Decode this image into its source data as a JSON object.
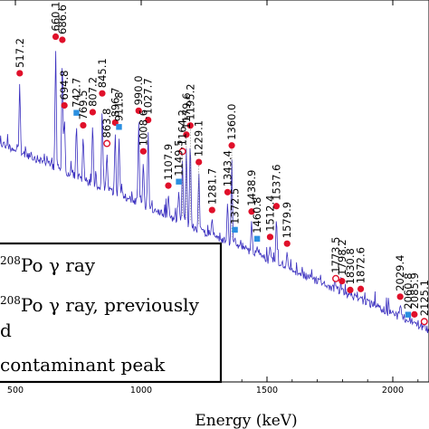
{
  "chart_data": {
    "type": "line",
    "title": "",
    "xlabel": "Energy (keV)",
    "ylabel": "",
    "xlim": [
      440,
      2150
    ],
    "x_ticks": [
      500,
      1000,
      1500,
      2000
    ],
    "x_tick_labels": [
      "500",
      "1000",
      "1500",
      "2000"
    ],
    "series_color": "#3a2fbf",
    "peaks": [
      {
        "label": "517.2",
        "energy": 517.2,
        "marker": "filled-circle",
        "height": 0.62
      },
      {
        "label": "660.1",
        "energy": 660.1,
        "marker": "filled-circle",
        "height": 0.92
      },
      {
        "label": "686.6",
        "energy": 686.6,
        "marker": "filled-circle",
        "height": 0.9
      },
      {
        "label": "694.8",
        "energy": 694.8,
        "marker": "filled-circle",
        "height": 0.45
      },
      {
        "label": "742.7",
        "energy": 742.7,
        "marker": "filled-square",
        "height": 0.42
      },
      {
        "label": "769.5",
        "energy": 769.5,
        "marker": "filled-circle",
        "height": 0.35
      },
      {
        "label": "807.2",
        "energy": 807.2,
        "marker": "filled-circle",
        "height": 0.45
      },
      {
        "label": "845.1",
        "energy": 845.1,
        "marker": "filled-circle",
        "height": 0.58
      },
      {
        "label": "863.8",
        "energy": 863.8,
        "marker": "open-circle",
        "height": 0.28
      },
      {
        "label": "896.7",
        "energy": 896.7,
        "marker": "filled-circle",
        "height": 0.42
      },
      {
        "label": "911.8",
        "energy": 911.8,
        "marker": "filled-square",
        "height": 0.4
      },
      {
        "label": "990.0",
        "energy": 990.0,
        "marker": "filled-circle",
        "height": 0.52
      },
      {
        "label": "1008.6",
        "energy": 1008.6,
        "marker": "filled-circle",
        "height": 0.3
      },
      {
        "label": "1027.7",
        "energy": 1027.7,
        "marker": "filled-circle",
        "height": 0.48
      },
      {
        "label": "1107.9",
        "energy": 1107.9,
        "marker": "filled-circle",
        "height": 0.16
      },
      {
        "label": "1149.5",
        "energy": 1149.5,
        "marker": "filled-square",
        "height": 0.2
      },
      {
        "label": "1164.2",
        "energy": 1164.2,
        "marker": "open-circle",
        "height": 0.36
      },
      {
        "label": "1179.6",
        "energy": 1179.6,
        "marker": "filled-circle",
        "height": 0.45
      },
      {
        "label": "1195.2",
        "energy": 1195.2,
        "marker": "filled-circle",
        "height": 0.5
      },
      {
        "label": "1229.1",
        "energy": 1229.1,
        "marker": "filled-circle",
        "height": 0.33
      },
      {
        "label": "1281.7",
        "energy": 1281.7,
        "marker": "filled-circle",
        "height": 0.12
      },
      {
        "label": "1343.4",
        "energy": 1343.4,
        "marker": "filled-circle",
        "height": 0.23
      },
      {
        "label": "1360.0",
        "energy": 1360.0,
        "marker": "filled-circle",
        "height": 0.45
      },
      {
        "label": "1372.5",
        "energy": 1372.5,
        "marker": "filled-square",
        "height": 0.07
      },
      {
        "label": "1438.9",
        "energy": 1438.9,
        "marker": "filled-circle",
        "height": 0.18
      },
      {
        "label": "1460.8",
        "energy": 1460.8,
        "marker": "filled-square",
        "height": 0.07
      },
      {
        "label": "1512.4",
        "energy": 1512.4,
        "marker": "filled-circle",
        "height": 0.1
      },
      {
        "label": "1537.6",
        "energy": 1537.6,
        "marker": "filled-circle",
        "height": 0.24
      },
      {
        "label": "1579.9",
        "energy": 1579.9,
        "marker": "filled-circle",
        "height": 0.1
      },
      {
        "label": "1773.5",
        "energy": 1773.5,
        "marker": "open-circle",
        "height": 0.04
      },
      {
        "label": "1798.2",
        "energy": 1798.2,
        "marker": "filled-circle",
        "height": 0.04
      },
      {
        "label": "1830.8",
        "energy": 1830.8,
        "marker": "filled-circle",
        "height": 0.02
      },
      {
        "label": "1872.6",
        "energy": 1872.6,
        "marker": "filled-circle",
        "height": 0.04
      },
      {
        "label": "2029.4",
        "energy": 2029.4,
        "marker": "filled-circle",
        "height": 0.07
      },
      {
        "label": "2060.8",
        "energy": 2060.8,
        "marker": "filled-square",
        "height": 0.02
      },
      {
        "label": "2085.9",
        "energy": 2085.9,
        "marker": "filled-circle",
        "height": 0.03
      },
      {
        "label": "2125.1",
        "energy": 2125.1,
        "marker": "open-circle",
        "height": 0.02
      }
    ],
    "legend": {
      "placement": "bottom-left",
      "entries": [
        {
          "marker": "filled-circle",
          "sup": "208",
          "text": "Po γ ray"
        },
        {
          "marker": "open-circle",
          "sup": "208",
          "text": "Po γ ray, previously"
        },
        {
          "marker": "open-circle",
          "sup": "",
          "text": "d"
        },
        {
          "marker": "filled-square",
          "sup": "",
          "text": "contaminant peak"
        }
      ]
    },
    "colors": {
      "filled_circle": "#e0102a",
      "square": "#2b8fe0",
      "spectrum": "#3a2fbf"
    }
  }
}
